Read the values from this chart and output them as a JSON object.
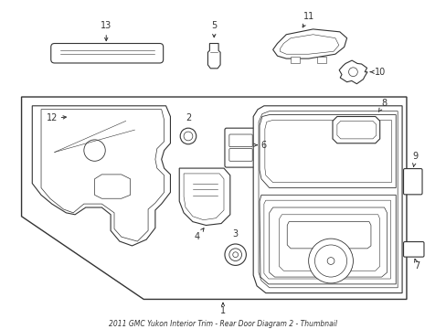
{
  "title": "2011 GMC Yukon Interior Trim - Rear Door Diagram 2 - Thumbnail",
  "background_color": "#ffffff",
  "line_color": "#333333",
  "fig_width": 4.89,
  "fig_height": 3.6,
  "dpi": 100
}
